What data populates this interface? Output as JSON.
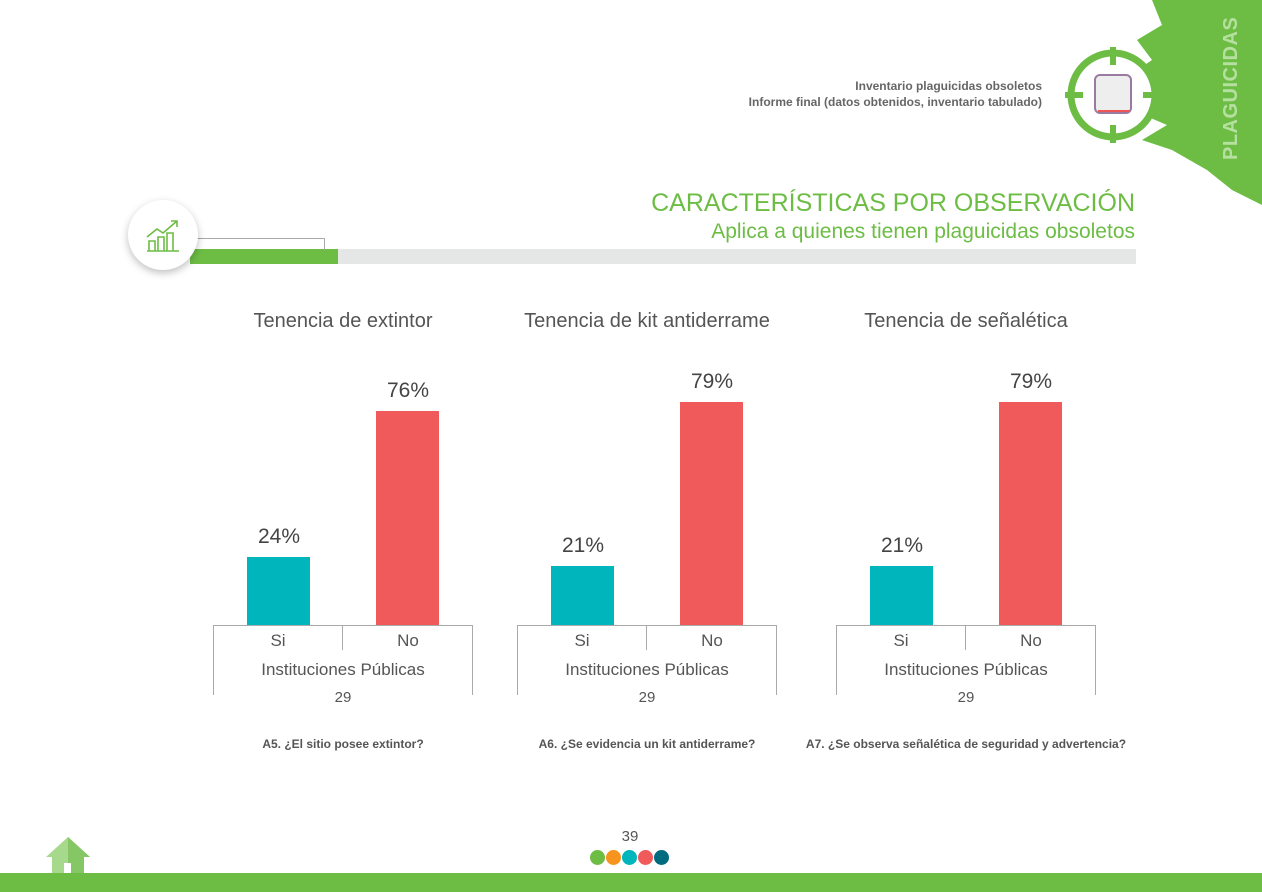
{
  "header": {
    "line1": "Inventario plaguicidas obsoletos",
    "line2": "Informe final (datos obtenidos, inventario tabulado)",
    "side_label": "PLAGUICIDAS"
  },
  "section": {
    "title": "CARACTERÍSTICAS POR OBSERVACIÓN",
    "subtitle": "Aplica a quienes tienen plaguicidas obsoletos"
  },
  "colors": {
    "green": "#6dbd45",
    "si": "#00b5bb",
    "no": "#f05a5b"
  },
  "chart_data": [
    {
      "type": "bar",
      "title": "Tenencia de extintor",
      "categories": [
        "Si",
        "No"
      ],
      "values": [
        24,
        76
      ],
      "labels": [
        "24%",
        "76%"
      ],
      "group": "Instituciones Públicas",
      "n": "29",
      "question": "A5. ¿El sitio posee extintor?",
      "ylim": [
        0,
        100
      ]
    },
    {
      "type": "bar",
      "title": "Tenencia de kit antiderrame",
      "categories": [
        "Si",
        "No"
      ],
      "values": [
        21,
        79
      ],
      "labels": [
        "21%",
        "79%"
      ],
      "group": "Instituciones Públicas",
      "n": "29",
      "question": "A6. ¿Se evidencia un kit antiderrame?",
      "ylim": [
        0,
        100
      ]
    },
    {
      "type": "bar",
      "title": "Tenencia de señalética",
      "categories": [
        "Si",
        "No"
      ],
      "values": [
        21,
        79
      ],
      "labels": [
        "21%",
        "79%"
      ],
      "group": "Instituciones Públicas",
      "n": "29",
      "question": "A7. ¿Se observa señalética de seguridad y advertencia?",
      "ylim": [
        0,
        100
      ]
    }
  ],
  "footer": {
    "page": "39",
    "dot_colors": [
      "#6dbd45",
      "#f7941d",
      "#00b5bb",
      "#f05a5b",
      "#006b7f"
    ]
  }
}
